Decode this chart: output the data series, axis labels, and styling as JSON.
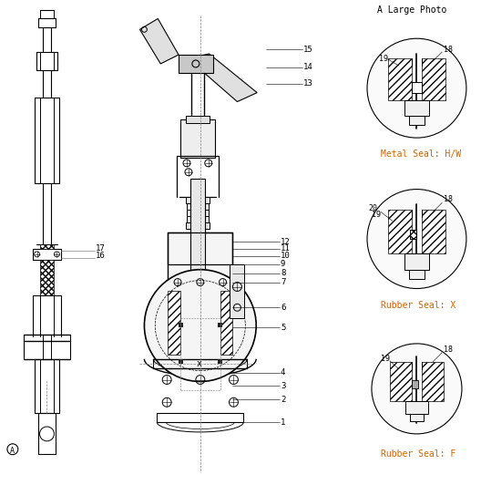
{
  "title": "",
  "bg_color": "#ffffff",
  "line_color": "#000000",
  "label_color_black": "#000000",
  "label_color_orange": "#cc6600",
  "label_color_dark": "#333333",
  "part_labels": [
    "1",
    "2",
    "3",
    "4",
    "5",
    "6",
    "7",
    "8",
    "9",
    "10",
    "11",
    "12",
    "13",
    "14",
    "15",
    "16",
    "17",
    "18",
    "19",
    "20"
  ],
  "seal_labels": [
    "A Large Photo",
    "Metal Seal: H/W",
    "Rubber Seal: X",
    "Rubber Seal: F"
  ],
  "figsize": [
    5.28,
    5.32
  ],
  "dpi": 100
}
